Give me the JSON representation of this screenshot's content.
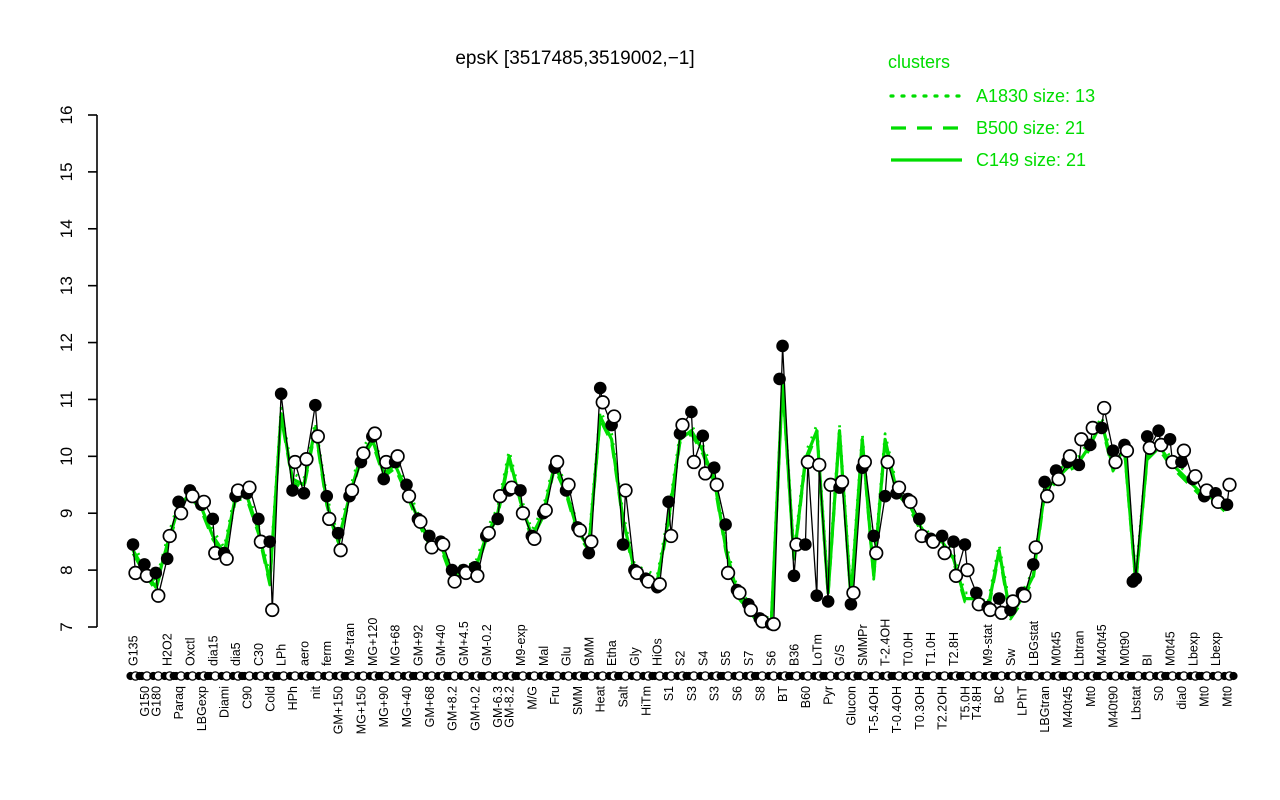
{
  "chart": {
    "type": "line",
    "title": "epsK [3517485,3519002,−1]",
    "legend": {
      "title": "clusters",
      "items": [
        {
          "style": "dotted",
          "label": "A1830 size: 13"
        },
        {
          "style": "dashed",
          "label": "B500 size: 21"
        },
        {
          "style": "solid",
          "label": "C149 size: 21"
        }
      ]
    },
    "ylim": [
      7,
      16
    ],
    "yticks": [
      7,
      8,
      9,
      10,
      11,
      12,
      13,
      14,
      15,
      16
    ],
    "grid": "off",
    "legend_position": "top-right",
    "colors": {
      "cluster": "#00dd00",
      "points": "#000000",
      "background": "#ffffff"
    },
    "conditions": [
      {
        "label": "G135",
        "row": "top"
      },
      {
        "label": "G150",
        "row": "bottom"
      },
      {
        "label": "G180",
        "row": "bottom"
      },
      {
        "label": "H2O2",
        "row": "top"
      },
      {
        "label": "Paraq",
        "row": "bottom"
      },
      {
        "label": "Oxctl",
        "row": "top"
      },
      {
        "label": "LBGexp",
        "row": "bottom"
      },
      {
        "label": "dia15",
        "row": "top"
      },
      {
        "label": "Diami",
        "row": "bottom"
      },
      {
        "label": "dia5",
        "row": "top"
      },
      {
        "label": "C90",
        "row": "bottom"
      },
      {
        "label": "C30",
        "row": "top"
      },
      {
        "label": "Cold",
        "row": "bottom"
      },
      {
        "label": "LPh",
        "row": "top"
      },
      {
        "label": "HPh",
        "row": "bottom"
      },
      {
        "label": "aero",
        "row": "top"
      },
      {
        "label": "nit",
        "row": "bottom"
      },
      {
        "label": "ferm",
        "row": "top"
      },
      {
        "label": "GM+150",
        "row": "bottom"
      },
      {
        "label": "M9-tran",
        "row": "top"
      },
      {
        "label": "MG+150",
        "row": "bottom"
      },
      {
        "label": "MG+120",
        "row": "top"
      },
      {
        "label": "MG+90",
        "row": "bottom"
      },
      {
        "label": "MG+68",
        "row": "top"
      },
      {
        "label": "MG+40",
        "row": "bottom"
      },
      {
        "label": "GM+92",
        "row": "top"
      },
      {
        "label": "GM+68",
        "row": "bottom"
      },
      {
        "label": "GM+40",
        "row": "top"
      },
      {
        "label": "GM+8.2",
        "row": "bottom"
      },
      {
        "label": "GM+4.5",
        "row": "top"
      },
      {
        "label": "GM+0.2",
        "row": "bottom"
      },
      {
        "label": "GM-0.2",
        "row": "top"
      },
      {
        "label": "GM-6.3",
        "row": "bottom"
      },
      {
        "label": "GM-8.2",
        "row": "bottom"
      },
      {
        "label": "M9-exp",
        "row": "top"
      },
      {
        "label": "M/G",
        "row": "bottom"
      },
      {
        "label": "Mal",
        "row": "top"
      },
      {
        "label": "Fru",
        "row": "bottom"
      },
      {
        "label": "Glu",
        "row": "top"
      },
      {
        "label": "SMM",
        "row": "bottom"
      },
      {
        "label": "BMM",
        "row": "top"
      },
      {
        "label": "Heat",
        "row": "bottom"
      },
      {
        "label": "Etha",
        "row": "top"
      },
      {
        "label": "Salt",
        "row": "bottom"
      },
      {
        "label": "Gly",
        "row": "top"
      },
      {
        "label": "HiTm",
        "row": "bottom"
      },
      {
        "label": "HiOs",
        "row": "top"
      },
      {
        "label": "S1",
        "row": "bottom"
      },
      {
        "label": "S2",
        "row": "top"
      },
      {
        "label": "S3",
        "row": "bottom"
      },
      {
        "label": "S4",
        "row": "top"
      },
      {
        "label": "S3",
        "row": "bottom"
      },
      {
        "label": "S5",
        "row": "top"
      },
      {
        "label": "S6",
        "row": "bottom"
      },
      {
        "label": "S7",
        "row": "top"
      },
      {
        "label": "S8",
        "row": "bottom"
      },
      {
        "label": "S6",
        "row": "top"
      },
      {
        "label": "BT",
        "row": "bottom"
      },
      {
        "label": "B36",
        "row": "top"
      },
      {
        "label": "B60",
        "row": "bottom"
      },
      {
        "label": "LoTm",
        "row": "top"
      },
      {
        "label": "Pyr",
        "row": "bottom"
      },
      {
        "label": "G/S",
        "row": "top"
      },
      {
        "label": "Glucon",
        "row": "bottom"
      },
      {
        "label": "SMMPr",
        "row": "top"
      },
      {
        "label": "T-5.4OH",
        "row": "bottom"
      },
      {
        "label": "T-2.4OH",
        "row": "top"
      },
      {
        "label": "T-0.4OH",
        "row": "bottom"
      },
      {
        "label": "T0.0H",
        "row": "top"
      },
      {
        "label": "T0.3OH",
        "row": "bottom"
      },
      {
        "label": "T1.0H",
        "row": "top"
      },
      {
        "label": "T2.2OH",
        "row": "bottom"
      },
      {
        "label": "T2.8H",
        "row": "top"
      },
      {
        "label": "T5.0H",
        "row": "bottom"
      },
      {
        "label": "T4.8H",
        "row": "bottom"
      },
      {
        "label": "M9-stat",
        "row": "top"
      },
      {
        "label": "BC",
        "row": "bottom"
      },
      {
        "label": "Sw",
        "row": "top"
      },
      {
        "label": "LPhT",
        "row": "bottom"
      },
      {
        "label": "LBGstat",
        "row": "top"
      },
      {
        "label": "LBGtran",
        "row": "bottom"
      },
      {
        "label": "M0t45",
        "row": "top"
      },
      {
        "label": "M40t45",
        "row": "bottom"
      },
      {
        "label": "Lbtran",
        "row": "top"
      },
      {
        "label": "Mt0",
        "row": "bottom"
      },
      {
        "label": "M40t45",
        "row": "top"
      },
      {
        "label": "M40t90",
        "row": "bottom"
      },
      {
        "label": "M0t90",
        "row": "top"
      },
      {
        "label": "Lbstat",
        "row": "bottom"
      },
      {
        "label": "BI",
        "row": "top"
      },
      {
        "label": "S0",
        "row": "bottom"
      },
      {
        "label": "M0t45",
        "row": "top"
      },
      {
        "label": "dia0",
        "row": "bottom"
      },
      {
        "label": "Lbexp",
        "row": "top"
      },
      {
        "label": "Mt0",
        "row": "bottom"
      },
      {
        "label": "Lbexp",
        "row": "top"
      },
      {
        "label": "Mt0",
        "row": "bottom"
      }
    ],
    "series": {
      "filled": [
        8.45,
        8.1,
        7.95,
        8.2,
        9.2,
        9.4,
        9.15,
        8.9,
        8.3,
        9.3,
        9.35,
        8.9,
        8.5,
        11.1,
        9.4,
        9.35,
        10.9,
        9.3,
        8.65,
        9.3,
        9.9,
        10.35,
        9.6,
        9.9,
        9.5,
        8.9,
        8.6,
        8.5,
        8.0,
        8.0,
        8.05,
        8.6,
        8.9,
        9.4,
        9.4,
        8.6,
        9.0,
        9.8,
        9.4,
        8.75,
        8.3,
        11.2,
        10.55,
        8.45,
        8.0,
        7.85,
        7.7,
        9.2,
        10.4,
        10.78,
        10.36,
        9.8,
        8.8,
        7.65,
        7.4,
        7.15,
        7.05,
        11.94,
        7.9,
        8.45,
        7.55,
        7.45,
        9.45,
        7.4,
        9.8,
        8.6,
        9.3,
        9.35,
        9.25,
        8.9,
        8.55,
        8.6,
        8.5,
        8.45,
        7.6,
        7.35,
        7.5,
        7.3,
        7.6,
        8.1,
        9.55,
        9.75,
        9.9,
        9.85,
        10.2,
        10.5,
        10.1,
        10.2,
        7.85,
        10.35,
        10.45,
        10.3,
        9.9,
        9.6,
        9.3,
        9.35,
        9.15
      ],
      "open": [
        7.95,
        7.9,
        7.55,
        8.6,
        9.0,
        9.3,
        9.2,
        8.3,
        8.2,
        9.4,
        9.45,
        8.5,
        7.3,
        null,
        9.9,
        9.95,
        10.35,
        8.9,
        8.35,
        9.4,
        10.05,
        10.4,
        9.9,
        10.0,
        9.3,
        8.85,
        8.4,
        8.45,
        7.8,
        7.95,
        7.9,
        8.65,
        9.3,
        9.45,
        9.0,
        8.55,
        9.05,
        9.9,
        9.5,
        8.7,
        8.5,
        10.95,
        10.7,
        9.4,
        7.95,
        7.8,
        7.75,
        8.6,
        10.55,
        9.9,
        9.7,
        9.5,
        7.95,
        7.6,
        7.3,
        7.1,
        7.05,
        null,
        8.45,
        9.9,
        9.85,
        9.5,
        9.55,
        7.6,
        9.9,
        8.3,
        9.9,
        9.45,
        9.2,
        8.6,
        8.5,
        8.3,
        7.9,
        8.0,
        7.4,
        7.3,
        7.25,
        7.45,
        7.55,
        8.4,
        9.3,
        9.6,
        10.0,
        10.3,
        10.5,
        10.85,
        9.9,
        10.1,
        null,
        10.15,
        10.2,
        9.9,
        10.1,
        9.65,
        9.4,
        9.2,
        9.5
      ],
      "green": [
        8.35,
        8.0,
        7.7,
        8.45,
        9.1,
        9.35,
        9.1,
        8.6,
        8.3,
        9.3,
        9.3,
        8.7,
        7.8,
        10.75,
        9.6,
        9.5,
        10.5,
        9.2,
        8.5,
        9.3,
        10.0,
        10.3,
        9.7,
        9.85,
        9.4,
        8.9,
        8.5,
        8.45,
        7.9,
        8.0,
        8.0,
        8.6,
        9.0,
        10.0,
        9.2,
        8.6,
        9.0,
        9.85,
        9.4,
        8.7,
        8.4,
        10.7,
        10.3,
        8.9,
        8.0,
        7.9,
        7.8,
        8.9,
        10.3,
        10.45,
        10.1,
        9.6,
        8.4,
        7.6,
        7.35,
        7.1,
        7.05,
        11.3,
        8.2,
        9.95,
        10.45,
        7.6,
        10.45,
        7.5,
        10.3,
        7.9,
        10.3,
        9.4,
        9.2,
        8.8,
        8.5,
        8.5,
        8.2,
        7.5,
        7.5,
        7.3,
        8.35,
        7.2,
        7.5,
        7.9,
        9.4,
        9.6,
        9.8,
        9.9,
        10.2,
        10.6,
        9.8,
        10.15,
        7.8,
        10.0,
        10.2,
        9.9,
        9.7,
        9.5,
        9.3,
        9.25,
        9.05
      ]
    },
    "extra_points": [
      {
        "index": 57,
        "series": "filled",
        "y": 11.36
      },
      {
        "index": 88,
        "series": "filled",
        "y": 7.8
      }
    ],
    "cluster_line_offsets": {
      "dotted": 0.1,
      "dashed": -0.06,
      "solid": 0
    }
  }
}
